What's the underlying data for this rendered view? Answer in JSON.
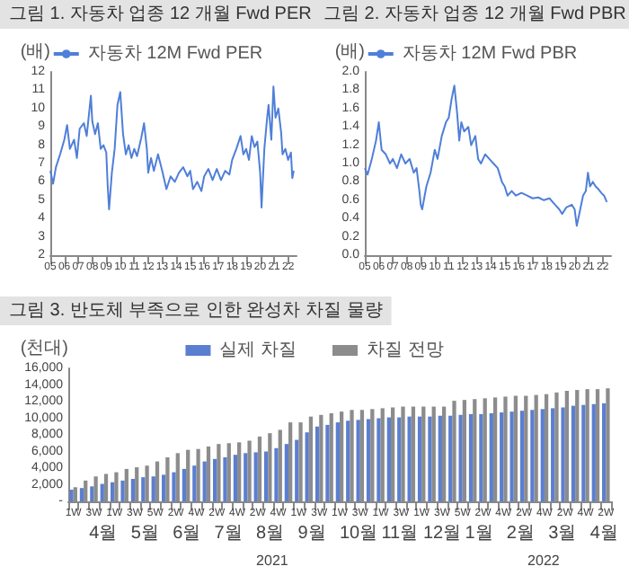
{
  "chart_data": [
    {
      "type": "line",
      "title": "그림 1. 자동차 업종 12 개월 Fwd PER",
      "ylabel": "(배)",
      "legend": "top",
      "marker": "none",
      "x": [
        2005.0,
        2005.2,
        2005.4,
        2005.7,
        2006.0,
        2006.2,
        2006.4,
        2006.7,
        2006.9,
        2007.1,
        2007.4,
        2007.6,
        2007.9,
        2008.0,
        2008.2,
        2008.4,
        2008.6,
        2008.8,
        2009.0,
        2009.1,
        2009.2,
        2009.4,
        2009.6,
        2009.8,
        2010.0,
        2010.2,
        2010.4,
        2010.6,
        2010.8,
        2011.0,
        2011.2,
        2011.5,
        2011.7,
        2011.9,
        2012.0,
        2012.2,
        2012.4,
        2012.7,
        2013.0,
        2013.3,
        2013.6,
        2013.9,
        2014.2,
        2014.5,
        2014.8,
        2015.0,
        2015.2,
        2015.5,
        2015.8,
        2016.0,
        2016.3,
        2016.6,
        2016.9,
        2017.2,
        2017.5,
        2017.8,
        2018.0,
        2018.3,
        2018.6,
        2018.8,
        2019.0,
        2019.2,
        2019.4,
        2019.6,
        2019.8,
        2020.0,
        2020.1,
        2020.3,
        2020.5,
        2020.6,
        2020.8,
        2020.95,
        2021.1,
        2021.3,
        2021.5,
        2021.6,
        2021.8,
        2022.0,
        2022.2,
        2022.3,
        2022.4
      ],
      "series": [
        {
          "name": "자동차 12M Fwd PER",
          "color": "#4f7fd8",
          "values": [
            6.6,
            5.9,
            6.8,
            7.5,
            8.3,
            9.1,
            7.8,
            8.3,
            7.3,
            8.9,
            9.2,
            8.5,
            10.7,
            9.3,
            8.6,
            9.2,
            7.8,
            8.0,
            7.6,
            5.8,
            4.5,
            6.5,
            7.8,
            10.2,
            10.9,
            8.6,
            7.5,
            8.0,
            7.3,
            7.8,
            7.4,
            8.4,
            9.2,
            7.8,
            6.5,
            7.3,
            6.6,
            7.5,
            6.6,
            5.6,
            6.3,
            6.0,
            6.5,
            6.8,
            6.3,
            6.6,
            5.6,
            6.0,
            5.5,
            6.3,
            6.7,
            6.1,
            6.7,
            6.1,
            6.6,
            6.4,
            7.2,
            7.8,
            8.5,
            7.5,
            7.8,
            7.2,
            8.5,
            7.9,
            8.2,
            6.5,
            4.6,
            7.8,
            9.5,
            10.2,
            8.3,
            11.2,
            9.5,
            10.0,
            8.7,
            7.5,
            7.8,
            7.2,
            7.6,
            6.2,
            6.6
          ]
        }
      ],
      "xlim": [
        2005,
        2022.6
      ],
      "xticks": [
        {
          "value": 2005,
          "label": "05"
        },
        {
          "value": 2006,
          "label": "06"
        },
        {
          "value": 2007,
          "label": "07"
        },
        {
          "value": 2008,
          "label": "08"
        },
        {
          "value": 2009,
          "label": "09"
        },
        {
          "value": 2010,
          "label": "10"
        },
        {
          "value": 2011,
          "label": "11"
        },
        {
          "value": 2012,
          "label": "12"
        },
        {
          "value": 2013,
          "label": "13"
        },
        {
          "value": 2014,
          "label": "14"
        },
        {
          "value": 2015,
          "label": "15"
        },
        {
          "value": 2016,
          "label": "16"
        },
        {
          "value": 2017,
          "label": "17"
        },
        {
          "value": 2018,
          "label": "18"
        },
        {
          "value": 2019,
          "label": "19"
        },
        {
          "value": 2020,
          "label": "20"
        },
        {
          "value": 2021,
          "label": "21"
        },
        {
          "value": 2022,
          "label": "22"
        }
      ],
      "ylim": [
        2,
        12
      ],
      "yticks": [
        2,
        3,
        4,
        5,
        6,
        7,
        8,
        9,
        10,
        11,
        12
      ]
    },
    {
      "type": "line",
      "title": "그림 2. 자동차 업종 12 개월 Fwd PBR",
      "ylabel": "(배)",
      "legend": "top",
      "marker": "none",
      "x": [
        2005.0,
        2005.2,
        2005.5,
        2005.8,
        2006.0,
        2006.2,
        2006.5,
        2006.8,
        2007.0,
        2007.3,
        2007.6,
        2007.9,
        2008.2,
        2008.5,
        2008.7,
        2008.9,
        2009.0,
        2009.1,
        2009.4,
        2009.7,
        2010.0,
        2010.2,
        2010.5,
        2010.8,
        2011.0,
        2011.2,
        2011.4,
        2011.5,
        2011.6,
        2011.75,
        2011.9,
        2012.1,
        2012.4,
        2012.6,
        2012.9,
        2013.1,
        2013.3,
        2013.6,
        2013.9,
        2014.2,
        2014.5,
        2014.8,
        2015.0,
        2015.2,
        2015.5,
        2015.8,
        2016.2,
        2016.6,
        2017.0,
        2017.4,
        2017.8,
        2018.2,
        2018.6,
        2018.9,
        2019.1,
        2019.4,
        2019.8,
        2020.0,
        2020.15,
        2020.4,
        2020.6,
        2020.8,
        2020.95,
        2021.1,
        2021.3,
        2021.5,
        2021.7,
        2021.9,
        2022.1,
        2022.3
      ],
      "series": [
        {
          "name": "자동차 12M Fwd PBR",
          "color": "#4f7fd8",
          "values": [
            0.95,
            0.88,
            1.05,
            1.25,
            1.45,
            1.15,
            1.1,
            1.0,
            1.05,
            0.95,
            1.1,
            1.0,
            1.05,
            0.9,
            0.95,
            0.7,
            0.55,
            0.5,
            0.75,
            0.9,
            1.15,
            1.05,
            1.3,
            1.45,
            1.5,
            1.7,
            1.85,
            1.7,
            1.55,
            1.25,
            1.45,
            1.35,
            1.4,
            1.2,
            1.3,
            1.05,
            1.0,
            1.1,
            1.05,
            1.0,
            0.95,
            0.8,
            0.75,
            0.65,
            0.7,
            0.65,
            0.68,
            0.65,
            0.62,
            0.63,
            0.6,
            0.62,
            0.55,
            0.5,
            0.45,
            0.52,
            0.55,
            0.5,
            0.32,
            0.5,
            0.65,
            0.7,
            0.9,
            0.75,
            0.8,
            0.75,
            0.72,
            0.68,
            0.65,
            0.58
          ]
        }
      ],
      "xlim": [
        2005,
        2022.6
      ],
      "xticks": [
        {
          "value": 2005,
          "label": "05"
        },
        {
          "value": 2006,
          "label": "06"
        },
        {
          "value": 2007,
          "label": "07"
        },
        {
          "value": 2008,
          "label": "08"
        },
        {
          "value": 2009,
          "label": "09"
        },
        {
          "value": 2010,
          "label": "10"
        },
        {
          "value": 2011,
          "label": "11"
        },
        {
          "value": 2012,
          "label": "12"
        },
        {
          "value": 2013,
          "label": "13"
        },
        {
          "value": 2014,
          "label": "14"
        },
        {
          "value": 2015,
          "label": "15"
        },
        {
          "value": 2016,
          "label": "16"
        },
        {
          "value": 2017,
          "label": "17"
        },
        {
          "value": 2018,
          "label": "18"
        },
        {
          "value": 2019,
          "label": "19"
        },
        {
          "value": 2020,
          "label": "20"
        },
        {
          "value": 2021,
          "label": "21"
        },
        {
          "value": 2022,
          "label": "22"
        }
      ],
      "ylim": [
        0,
        2
      ],
      "yticks": [
        {
          "value": 0,
          "label": "0.0"
        },
        {
          "value": 0.2,
          "label": "0.2"
        },
        {
          "value": 0.4,
          "label": "0.4"
        },
        {
          "value": 0.6,
          "label": "0.6"
        },
        {
          "value": 0.8,
          "label": "0.8"
        },
        {
          "value": 1,
          "label": "1.0"
        },
        {
          "value": 1.2,
          "label": "1.2"
        },
        {
          "value": 1.4,
          "label": "1.4"
        },
        {
          "value": 1.6,
          "label": "1.6"
        },
        {
          "value": 1.8,
          "label": "1.8"
        },
        {
          "value": 2,
          "label": "2.0"
        }
      ]
    },
    {
      "type": "bar",
      "title": "그림 3. 반도체 부족으로 인한 완성차 차질 물량",
      "ylabel": "(천대)",
      "legend": "top",
      "categories": [
        "1W",
        null,
        "3W",
        null,
        "1W",
        null,
        "3W",
        null,
        "5W",
        null,
        "2W",
        null,
        "4W",
        null,
        "2W",
        null,
        "4W",
        null,
        "2W",
        null,
        "4W",
        null,
        "1W",
        null,
        "3W",
        null,
        "1W",
        null,
        "3W",
        null,
        "1W",
        null,
        "3W",
        null,
        "1W",
        null,
        "3W",
        null,
        "5W",
        null,
        "2W",
        null,
        "4W",
        null,
        "2W",
        null,
        "4W",
        null,
        "2W",
        null,
        "4W",
        null,
        "2W"
      ],
      "series": [
        {
          "name": "실제 차질",
          "color": "#5b7fd0",
          "values": [
            1400,
            1600,
            1800,
            2100,
            2300,
            2500,
            2700,
            2900,
            3000,
            3200,
            3500,
            3900,
            4300,
            4800,
            5100,
            5300,
            5600,
            5800,
            5900,
            6000,
            6400,
            6900,
            7400,
            8300,
            9000,
            9200,
            9500,
            9700,
            9800,
            9900,
            10000,
            10100,
            10100,
            10200,
            10200,
            10200,
            10300,
            10300,
            10400,
            10500,
            10500,
            10600,
            10700,
            10800,
            10900,
            11000,
            11100,
            11200,
            11300,
            11500,
            11600,
            11700,
            11800
          ]
        },
        {
          "name": "차질 전망",
          "color": "#8c8c8c",
          "values": [
            1700,
            2500,
            3000,
            3300,
            3500,
            3900,
            4100,
            4300,
            4800,
            5300,
            5800,
            6200,
            6300,
            6600,
            6900,
            7000,
            7100,
            7300,
            7800,
            8200,
            8600,
            9500,
            9500,
            10200,
            10400,
            10600,
            10800,
            11000,
            11000,
            11100,
            11200,
            11300,
            11400,
            11400,
            11400,
            11400,
            11400,
            12100,
            12200,
            12300,
            12400,
            12500,
            12600,
            12700,
            12700,
            12800,
            12900,
            13100,
            13300,
            13400,
            13500,
            13500,
            13600
          ]
        }
      ],
      "ylim": [
        0,
        16000
      ],
      "yticks": [
        {
          "value": 0,
          "label": "-"
        },
        {
          "value": 2000,
          "label": "2,000"
        },
        {
          "value": 4000,
          "label": "4,000"
        },
        {
          "value": 6000,
          "label": "6,000"
        },
        {
          "value": 8000,
          "label": "8,000"
        },
        {
          "value": 10000,
          "label": "10,000"
        },
        {
          "value": 12000,
          "label": "12,000"
        },
        {
          "value": 14000,
          "label": "14,000"
        },
        {
          "value": 16000,
          "label": "16,000"
        }
      ],
      "annotations": [
        "4월",
        "5월",
        "6월",
        "7월",
        "8월",
        "9월",
        "10월",
        "11월",
        "12월",
        "1월",
        "2월",
        "3월",
        "4월",
        "2021",
        "2022"
      ]
    }
  ]
}
